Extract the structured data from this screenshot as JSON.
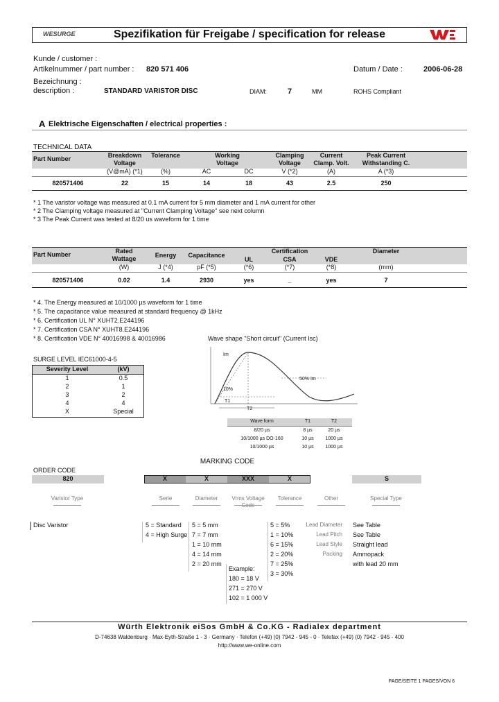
{
  "header": {
    "logo": "WESURGE",
    "title": "Spezifikation für Freigabe / specification for release"
  },
  "info": {
    "customer_label": "Kunde / customer :",
    "part_label": "Artikelnummer / part number :",
    "part_number": "820 571 406",
    "date_label": "Datum / Date :",
    "date": "2006-06-28",
    "designation_label": "Bezeichnung :",
    "description_label": "description :",
    "description": "STANDARD VARISTOR DISC",
    "diam_label": "DIAM:",
    "diam": "7",
    "diam_unit": "MM",
    "rohs": "ROHS Compliant"
  },
  "section": {
    "letter": "A",
    "title": "Elektrische Eigenschaften  /  electrical properties :"
  },
  "technical_data": {
    "caption": "TECHNICAL DATA",
    "headers": [
      "Part Number",
      "Breakdown\nVoltage",
      "Tolerance",
      "Working\nVoltage",
      "Clamping\nVoltage",
      "Current\nClamp. Volt.",
      "Peak Current\nWithstanding C."
    ],
    "units": [
      "(V@mA) (*1)",
      "(%)",
      "AC",
      "DC",
      "V (*2)",
      "(A)",
      "A (*3)"
    ],
    "row": [
      "820571406",
      "22",
      "15",
      "14",
      "18",
      "43",
      "2.5",
      "250"
    ]
  },
  "notes1": [
    "*  1 The varistor voltage was measured at 0.1 mA current for 5 mm diameter and 1 mA current for other",
    "*  2 The Clamping voltage measured at \"Current Clamping Voltage\" see next column",
    "*  3 The Peak Current was tested at 8/20 us waveform for 1 time"
  ],
  "table2": {
    "headers": [
      "Part Number",
      "Rated\nWattage",
      "Energy",
      "Capacitance",
      "Certification",
      "UL",
      "CSA",
      "VDE",
      "Diameter"
    ],
    "units": [
      "(W)",
      "J (*4)",
      "pF (*5)",
      "(*6)",
      "(*7)",
      "(*8)",
      "(mm)"
    ],
    "row": [
      "820571406",
      "0.02",
      "1.4",
      "2930",
      "yes",
      "_",
      "yes",
      "7"
    ]
  },
  "notes2": [
    "*  4. The Energy measured at 10/1000 µs waveform for 1 time",
    "*  5. The capacitance value measured at standard frequency @ 1kHz",
    "*  6. Certification UL N° XUHT2.E244196",
    "*  7. Certification CSA N° XUHT8.E244196",
    "*  8. Certification VDE N° 40016998 & 40016986"
  ],
  "surge_level": {
    "caption": "SURGE LEVEL IEC61000-4-5",
    "headers": [
      "Severity Level",
      "(kV)"
    ],
    "rows": [
      [
        "1",
        "0.5"
      ],
      [
        "2",
        "1"
      ],
      [
        "3",
        "2"
      ],
      [
        "4",
        "4"
      ],
      [
        "X",
        "Special"
      ]
    ]
  },
  "waveform": {
    "title": "Wave shape \"Short circuit\" (Current Isc)",
    "labels": [
      "Im",
      "50% Im",
      "10%",
      "T1",
      "T2"
    ],
    "headers": [
      "Wave form",
      "T1",
      "T2"
    ],
    "rows": [
      [
        "8/20 µs",
        "8 µs",
        "20 µs"
      ],
      [
        "10/1000 µs DO-160",
        "10 µs",
        "1000 µs"
      ],
      [
        "10/1000 µs",
        "10 µs",
        "1000 µs"
      ]
    ]
  },
  "order_code": {
    "order_caption": "ORDER CODE",
    "marking_caption": "MARKING CODE",
    "boxes": [
      "820",
      "X",
      "X",
      "XXX",
      "X",
      "S"
    ],
    "labels": [
      "Varistor Type",
      "Serie",
      "Diameter",
      "Vrms Voltage\nCode",
      "Tolerance",
      "Other",
      "Special Type"
    ],
    "varistor_type": "Disc Varistor",
    "serie": [
      "5 = Standard",
      "4 = High Surge"
    ],
    "diameter": [
      "5 = 5 mm",
      "7 = 7 mm",
      "1 = 10 mm",
      "4 = 14 mm",
      "2 = 20 mm"
    ],
    "voltage": [
      "Example:",
      "180 = 18 V",
      "271 = 270 V",
      "102 = 1 000 V"
    ],
    "tolerance": [
      "5 = 5%",
      "1 = 10%",
      "6 = 15%",
      "2 = 20%",
      "7 = 25%",
      "3 = 30%"
    ],
    "other_labels": [
      "Lead Diameter",
      "Lead Pitch",
      "Lead Style",
      "Packing"
    ],
    "other_values": [
      "See Table",
      "See Table",
      "Straight lead",
      "Ammopack",
      "with lead 20 mm"
    ]
  },
  "footer": {
    "company": "Würth Elektronik eiSos GmbH & Co.KG - Radialex department",
    "address": "D-74638 Waldenburg · Max-Eyth-Straße 1 - 3 · Germany · Telefon (+49) (0) 7942 - 945 - 0 · Telefax (+49) (0) 7942 - 945 - 400",
    "url": "http://www.we-online.com",
    "page": "PAGE/SEITE 1   PAGES/VON 6"
  }
}
